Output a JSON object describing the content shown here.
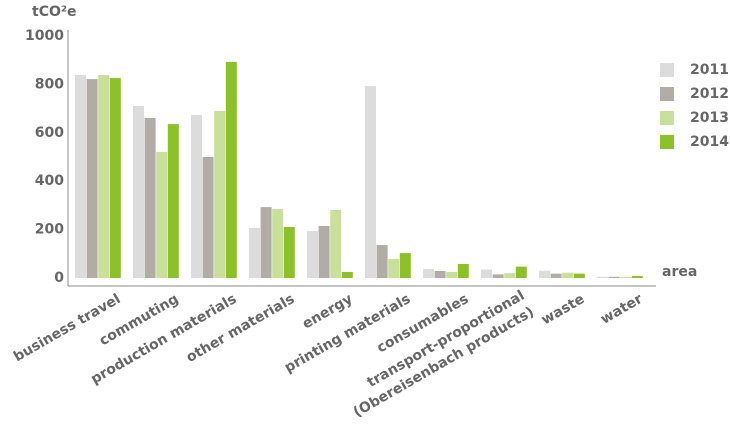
{
  "chart_data": {
    "type": "bar",
    "y_label": "tCO²e",
    "x_label": "area",
    "categories": [
      "business travel",
      "commuting",
      "production materials",
      "other materials",
      "energy",
      "printing materials",
      "consumables",
      "transport-proportional\n(Obereisenbach products)",
      "waste",
      "water"
    ],
    "series": [
      {
        "name": "2011",
        "color": "#dcdcdc",
        "values": [
          839,
          711,
          674,
          207,
          194,
          793,
          37,
          35,
          30,
          5
        ]
      },
      {
        "name": "2012",
        "color": "#b2aca7",
        "values": [
          822,
          661,
          500,
          293,
          215,
          136,
          29,
          15,
          18,
          5
        ]
      },
      {
        "name": "2013",
        "color": "#c8e09a",
        "values": [
          839,
          521,
          690,
          285,
          281,
          79,
          25,
          20,
          22,
          5
        ]
      },
      {
        "name": "2014",
        "color": "#8cc12a",
        "values": [
          826,
          636,
          893,
          211,
          25,
          103,
          58,
          47,
          18,
          8
        ]
      }
    ],
    "ylim": [
      0,
      1000
    ],
    "yticks": [
      0,
      200,
      400,
      600,
      800,
      1000
    ],
    "legend": "right"
  }
}
